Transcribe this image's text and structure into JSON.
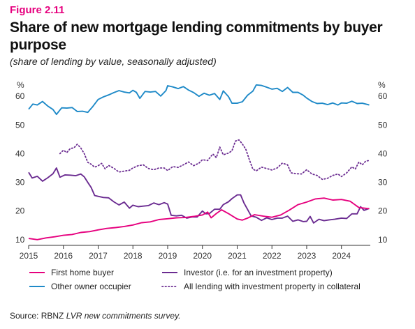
{
  "header": {
    "figure_label": "Figure 2.11",
    "title": "Share of new mortgage lending commitments by buyer purpose",
    "subtitle": "(share of lending by value, seasonally adjusted)"
  },
  "source": {
    "prefix": "Source: RBNZ ",
    "survey": "LVR new commitments survey."
  },
  "chart_data": {
    "type": "line",
    "title": "Share of new mortgage lending commitments by buyer purpose",
    "subtitle": "(share of lending by value, seasonally adjusted)",
    "y_unit_left": "%",
    "y_unit_right": "%",
    "ylim": [
      8,
      62
    ],
    "yticks": [
      10,
      20,
      30,
      40,
      50,
      60
    ],
    "xlim": [
      2015,
      2024.83
    ],
    "xticks": [
      2015,
      2016,
      2017,
      2018,
      2019,
      2020,
      2021,
      2022,
      2023,
      2024
    ],
    "grid": false,
    "legend_position": "bottom",
    "series": [
      {
        "name": "First home buyer",
        "color": "#e6007e",
        "style": "solid",
        "points": [
          [
            2015.0,
            10.4
          ],
          [
            2015.25,
            10.0
          ],
          [
            2015.5,
            10.6
          ],
          [
            2015.75,
            11.0
          ],
          [
            2016.0,
            11.5
          ],
          [
            2016.25,
            11.8
          ],
          [
            2016.5,
            12.5
          ],
          [
            2016.75,
            12.8
          ],
          [
            2017.0,
            13.4
          ],
          [
            2017.25,
            13.9
          ],
          [
            2017.5,
            14.2
          ],
          [
            2017.75,
            14.6
          ],
          [
            2018.0,
            15.1
          ],
          [
            2018.25,
            15.9
          ],
          [
            2018.5,
            16.2
          ],
          [
            2018.75,
            17.0
          ],
          [
            2019.0,
            17.3
          ],
          [
            2019.25,
            17.6
          ],
          [
            2019.5,
            17.7
          ],
          [
            2019.75,
            18.1
          ],
          [
            2020.0,
            18.6
          ],
          [
            2020.15,
            19.6
          ],
          [
            2020.25,
            17.6
          ],
          [
            2020.4,
            19.1
          ],
          [
            2020.55,
            20.4
          ],
          [
            2020.75,
            19.1
          ],
          [
            2021.0,
            17.2
          ],
          [
            2021.15,
            16.8
          ],
          [
            2021.3,
            17.5
          ],
          [
            2021.5,
            18.7
          ],
          [
            2021.75,
            18.2
          ],
          [
            2022.0,
            17.8
          ],
          [
            2022.25,
            18.6
          ],
          [
            2022.5,
            20.3
          ],
          [
            2022.75,
            22.2
          ],
          [
            2023.0,
            23.1
          ],
          [
            2023.25,
            24.2
          ],
          [
            2023.5,
            24.5
          ],
          [
            2023.75,
            23.8
          ],
          [
            2024.0,
            24.0
          ],
          [
            2024.25,
            23.4
          ],
          [
            2024.5,
            21.2
          ],
          [
            2024.65,
            21.0
          ],
          [
            2024.8,
            20.8
          ]
        ]
      },
      {
        "name": "Other owner occupier",
        "color": "#1f8ac8",
        "style": "solid",
        "points": [
          [
            2015.0,
            55.5
          ],
          [
            2015.12,
            57.3
          ],
          [
            2015.25,
            57.0
          ],
          [
            2015.4,
            58.2
          ],
          [
            2015.55,
            56.6
          ],
          [
            2015.7,
            55.4
          ],
          [
            2015.8,
            53.7
          ],
          [
            2015.95,
            56.0
          ],
          [
            2016.1,
            55.9
          ],
          [
            2016.25,
            56.1
          ],
          [
            2016.4,
            54.7
          ],
          [
            2016.55,
            54.8
          ],
          [
            2016.7,
            54.4
          ],
          [
            2016.85,
            56.5
          ],
          [
            2017.0,
            58.9
          ],
          [
            2017.15,
            59.8
          ],
          [
            2017.3,
            60.5
          ],
          [
            2017.45,
            61.3
          ],
          [
            2017.6,
            62.0
          ],
          [
            2017.75,
            61.5
          ],
          [
            2017.9,
            61.2
          ],
          [
            2018.0,
            62.1
          ],
          [
            2018.1,
            61.4
          ],
          [
            2018.2,
            59.3
          ],
          [
            2018.35,
            61.7
          ],
          [
            2018.5,
            61.5
          ],
          [
            2018.65,
            61.7
          ],
          [
            2018.8,
            60.1
          ],
          [
            2018.95,
            62.0
          ],
          [
            2019.0,
            63.7
          ],
          [
            2019.15,
            63.3
          ],
          [
            2019.3,
            62.7
          ],
          [
            2019.45,
            63.4
          ],
          [
            2019.6,
            62.2
          ],
          [
            2019.75,
            61.3
          ],
          [
            2019.9,
            60.0
          ],
          [
            2020.05,
            61.1
          ],
          [
            2020.2,
            60.4
          ],
          [
            2020.35,
            61.0
          ],
          [
            2020.5,
            58.9
          ],
          [
            2020.6,
            61.9
          ],
          [
            2020.75,
            59.9
          ],
          [
            2020.85,
            57.6
          ],
          [
            2021.0,
            57.6
          ],
          [
            2021.15,
            58.1
          ],
          [
            2021.3,
            60.4
          ],
          [
            2021.45,
            61.8
          ],
          [
            2021.55,
            64.0
          ],
          [
            2021.7,
            63.8
          ],
          [
            2021.85,
            63.2
          ],
          [
            2022.0,
            62.5
          ],
          [
            2022.15,
            62.8
          ],
          [
            2022.3,
            61.7
          ],
          [
            2022.45,
            63.1
          ],
          [
            2022.6,
            61.4
          ],
          [
            2022.75,
            61.4
          ],
          [
            2022.9,
            60.4
          ],
          [
            2023.0,
            59.4
          ],
          [
            2023.15,
            58.2
          ],
          [
            2023.3,
            57.5
          ],
          [
            2023.45,
            57.6
          ],
          [
            2023.6,
            57.1
          ],
          [
            2023.75,
            57.7
          ],
          [
            2023.9,
            57.0
          ],
          [
            2024.0,
            57.7
          ],
          [
            2024.15,
            57.6
          ],
          [
            2024.3,
            58.3
          ],
          [
            2024.45,
            57.5
          ],
          [
            2024.6,
            57.6
          ],
          [
            2024.8,
            57.0
          ]
        ]
      },
      {
        "name": "Investor (i.e. for an investment property)",
        "color": "#6b2c91",
        "style": "solid",
        "points": [
          [
            2015.0,
            33.5
          ],
          [
            2015.1,
            31.5
          ],
          [
            2015.25,
            32.1
          ],
          [
            2015.4,
            30.4
          ],
          [
            2015.55,
            31.6
          ],
          [
            2015.7,
            33.0
          ],
          [
            2015.8,
            35.0
          ],
          [
            2015.9,
            31.8
          ],
          [
            2016.05,
            32.6
          ],
          [
            2016.2,
            32.5
          ],
          [
            2016.35,
            32.3
          ],
          [
            2016.5,
            32.9
          ],
          [
            2016.6,
            31.9
          ],
          [
            2016.7,
            30.0
          ],
          [
            2016.8,
            28.2
          ],
          [
            2016.9,
            25.4
          ],
          [
            2017.0,
            25.1
          ],
          [
            2017.15,
            24.7
          ],
          [
            2017.3,
            24.6
          ],
          [
            2017.45,
            23.2
          ],
          [
            2017.6,
            22.1
          ],
          [
            2017.75,
            23.1
          ],
          [
            2017.9,
            21.0
          ],
          [
            2018.0,
            22.0
          ],
          [
            2018.15,
            21.5
          ],
          [
            2018.3,
            21.7
          ],
          [
            2018.45,
            21.9
          ],
          [
            2018.6,
            22.8
          ],
          [
            2018.75,
            22.2
          ],
          [
            2018.9,
            22.9
          ],
          [
            2019.0,
            22.4
          ],
          [
            2019.1,
            18.5
          ],
          [
            2019.25,
            18.3
          ],
          [
            2019.4,
            18.5
          ],
          [
            2019.55,
            17.5
          ],
          [
            2019.7,
            17.9
          ],
          [
            2019.85,
            17.9
          ],
          [
            2020.0,
            20.0
          ],
          [
            2020.1,
            19.0
          ],
          [
            2020.2,
            19.1
          ],
          [
            2020.35,
            20.6
          ],
          [
            2020.5,
            20.6
          ],
          [
            2020.6,
            22.2
          ],
          [
            2020.75,
            23.2
          ],
          [
            2020.85,
            24.3
          ],
          [
            2021.0,
            25.6
          ],
          [
            2021.1,
            25.6
          ],
          [
            2021.2,
            22.7
          ],
          [
            2021.3,
            20.5
          ],
          [
            2021.4,
            18.3
          ],
          [
            2021.55,
            17.8
          ],
          [
            2021.7,
            16.7
          ],
          [
            2021.85,
            17.6
          ],
          [
            2022.0,
            17.0
          ],
          [
            2022.15,
            17.5
          ],
          [
            2022.3,
            17.5
          ],
          [
            2022.45,
            18.2
          ],
          [
            2022.6,
            16.4
          ],
          [
            2022.75,
            16.9
          ],
          [
            2022.9,
            16.3
          ],
          [
            2023.0,
            16.4
          ],
          [
            2023.1,
            18.1
          ],
          [
            2023.2,
            15.8
          ],
          [
            2023.35,
            17.1
          ],
          [
            2023.5,
            16.6
          ],
          [
            2023.65,
            16.9
          ],
          [
            2023.8,
            17.1
          ],
          [
            2024.0,
            17.5
          ],
          [
            2024.15,
            17.4
          ],
          [
            2024.3,
            19.0
          ],
          [
            2024.45,
            19.0
          ],
          [
            2024.55,
            21.5
          ],
          [
            2024.65,
            20.2
          ],
          [
            2024.8,
            20.9
          ]
        ]
      },
      {
        "name": "All lending with investment property in collateral",
        "color": "#6b2c91",
        "style": "dotted",
        "points": [
          [
            2015.9,
            40.0
          ],
          [
            2016.0,
            41.2
          ],
          [
            2016.1,
            40.4
          ],
          [
            2016.2,
            41.8
          ],
          [
            2016.3,
            42.0
          ],
          [
            2016.4,
            43.3
          ],
          [
            2016.5,
            42.0
          ],
          [
            2016.6,
            40.0
          ],
          [
            2016.7,
            37.0
          ],
          [
            2016.8,
            36.3
          ],
          [
            2016.9,
            35.3
          ],
          [
            2017.0,
            35.8
          ],
          [
            2017.1,
            36.6
          ],
          [
            2017.2,
            34.7
          ],
          [
            2017.3,
            35.9
          ],
          [
            2017.45,
            34.9
          ],
          [
            2017.6,
            33.6
          ],
          [
            2017.75,
            33.9
          ],
          [
            2017.9,
            34.2
          ],
          [
            2018.0,
            35.0
          ],
          [
            2018.15,
            35.8
          ],
          [
            2018.3,
            36.1
          ],
          [
            2018.45,
            34.8
          ],
          [
            2018.6,
            34.4
          ],
          [
            2018.75,
            35.0
          ],
          [
            2018.9,
            35.0
          ],
          [
            2019.0,
            34.1
          ],
          [
            2019.15,
            35.5
          ],
          [
            2019.3,
            35.2
          ],
          [
            2019.45,
            36.1
          ],
          [
            2019.6,
            37.1
          ],
          [
            2019.75,
            35.8
          ],
          [
            2019.9,
            36.7
          ],
          [
            2020.0,
            37.9
          ],
          [
            2020.15,
            37.6
          ],
          [
            2020.3,
            39.9
          ],
          [
            2020.4,
            38.6
          ],
          [
            2020.5,
            42.3
          ],
          [
            2020.6,
            39.6
          ],
          [
            2020.75,
            40.2
          ],
          [
            2020.85,
            41.0
          ],
          [
            2020.95,
            44.4
          ],
          [
            2021.05,
            44.8
          ],
          [
            2021.15,
            43.4
          ],
          [
            2021.25,
            41.5
          ],
          [
            2021.35,
            37.9
          ],
          [
            2021.45,
            34.6
          ],
          [
            2021.55,
            34.0
          ],
          [
            2021.7,
            35.3
          ],
          [
            2021.85,
            34.8
          ],
          [
            2022.0,
            34.3
          ],
          [
            2022.15,
            35.0
          ],
          [
            2022.3,
            36.7
          ],
          [
            2022.45,
            36.1
          ],
          [
            2022.55,
            33.3
          ],
          [
            2022.7,
            33.0
          ],
          [
            2022.85,
            32.9
          ],
          [
            2023.0,
            34.4
          ],
          [
            2023.15,
            32.9
          ],
          [
            2023.3,
            32.4
          ],
          [
            2023.45,
            31.0
          ],
          [
            2023.6,
            31.4
          ],
          [
            2023.75,
            32.4
          ],
          [
            2023.9,
            32.9
          ],
          [
            2024.0,
            32.0
          ],
          [
            2024.15,
            33.3
          ],
          [
            2024.3,
            35.4
          ],
          [
            2024.4,
            34.6
          ],
          [
            2024.5,
            37.1
          ],
          [
            2024.6,
            36.1
          ],
          [
            2024.7,
            37.4
          ],
          [
            2024.8,
            37.6
          ]
        ]
      }
    ]
  }
}
